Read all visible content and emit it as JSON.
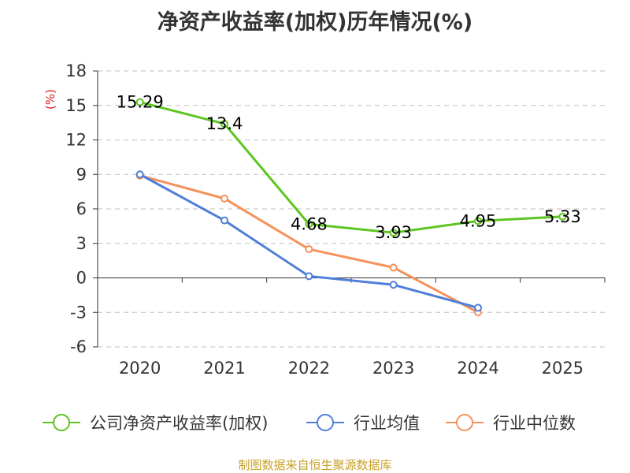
{
  "chart_data": {
    "type": "line",
    "title": "净资产收益率(加权)历年情况(%)",
    "xlabel": "",
    "ylabel": "(%)",
    "categories": [
      "2020",
      "2021",
      "2022",
      "2023",
      "2024",
      "2025"
    ],
    "yticks": [
      18,
      15,
      12,
      9,
      6,
      3,
      0,
      -3,
      -6
    ],
    "ylim": [
      -6,
      18
    ],
    "grid": true,
    "legend_position": "bottom",
    "series": [
      {
        "name": "公司净资产收益率(加权)",
        "color": "#5cc51f",
        "values": [
          15.29,
          13.4,
          4.68,
          3.93,
          4.95,
          5.33
        ],
        "labels": [
          "15.29",
          "13.4",
          "4.68",
          "3.93",
          "4.95",
          "5.33"
        ]
      },
      {
        "name": "行业均值",
        "color": "#4f7fd9",
        "values": [
          9.0,
          5.0,
          0.15,
          -0.6,
          -2.6,
          null
        ]
      },
      {
        "name": "行业中位数",
        "color": "#f5915a",
        "values": [
          8.9,
          6.9,
          2.5,
          0.9,
          -3.0,
          null
        ]
      }
    ],
    "source": "制图数据来自恒生聚源数据库"
  }
}
